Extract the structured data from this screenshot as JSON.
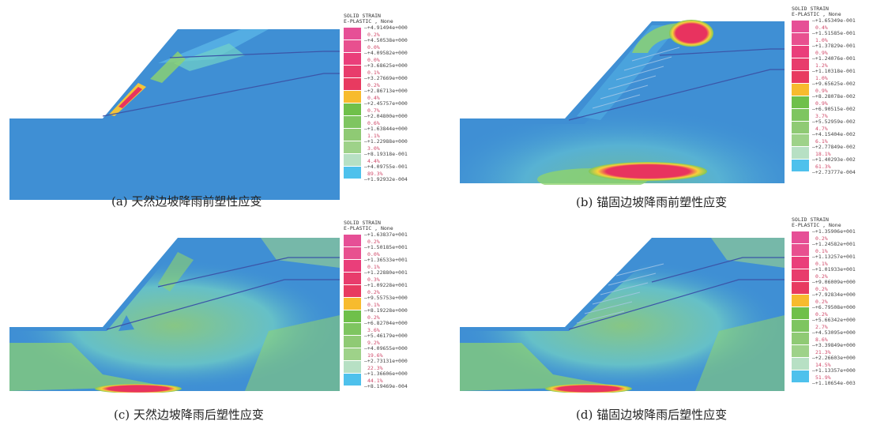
{
  "captions": {
    "a": "(a) 天然边坡降雨前塑性应变",
    "b": "(b) 锚固边坡降雨前塑性应变",
    "c": "(c) 天然边坡降雨后塑性应变",
    "d": "(d) 锚固边坡降雨后塑性应变"
  },
  "legend_title": {
    "line1": "SOLID STRAIN",
    "line2": "E-PLASTIC , None"
  },
  "colors": [
    "#e64f96",
    "#e8508f",
    "#ea3e7a",
    "#e83c6c",
    "#e83a60",
    "#f7bb2e",
    "#6fc04a",
    "#7ec560",
    "#8fca74",
    "#9ed289",
    "#a9d8a4",
    "#b7e0c4",
    "#4ec1ec",
    "#3b82c9"
  ],
  "legends": {
    "a": {
      "values": [
        "+4.91494e+000",
        "+4.50538e+000",
        "+4.09582e+000",
        "+3.68625e+000",
        "+3.27669e+000",
        "+2.86713e+000",
        "+2.45757e+000",
        "+2.04800e+000",
        "+1.63844e+000",
        "+1.22988e+000",
        "+8.19318e-001",
        "+4.09755e-001",
        "+1.92932e-004"
      ],
      "percents": [
        "0.2%",
        "0.0%",
        "0.0%",
        "0.1%",
        "0.2%",
        "0.4%",
        "0.7%",
        "0.6%",
        "1.1%",
        "3.0%",
        "4.4%",
        "89.3%"
      ]
    },
    "b": {
      "values": [
        "+1.65349e-001",
        "+1.51585e-001",
        "+1.37829e-001",
        "+1.24076e-001",
        "+1.10318e-001",
        "+9.65625e-002",
        "+8.28078e-002",
        "+6.90515e-002",
        "+5.52959e-002",
        "+4.15404e-002",
        "+2.77849e-002",
        "+1.40293e-002",
        "+2.73777e-004"
      ],
      "percents": [
        "0.4%",
        "1.0%",
        "0.9%",
        "1.2%",
        "1.0%",
        "0.9%",
        "0.9%",
        "3.7%",
        "4.7%",
        "6.1%",
        "18.1%",
        "61.3%"
      ]
    },
    "c": {
      "values": [
        "+1.63837e+001",
        "+1.50185e+001",
        "+1.36533e+001",
        "+1.22880e+001",
        "+1.09228e+001",
        "+9.55753e+000",
        "+8.19228e+000",
        "+6.82704e+000",
        "+5.46179e+000",
        "+4.09655e+000",
        "+2.73131e+000",
        "+1.36606e+000",
        "+8.19469e-004"
      ],
      "percents": [
        "0.2%",
        "0.0%",
        "0.1%",
        "0.3%",
        "0.2%",
        "0.1%",
        "0.2%",
        "3.6%",
        "9.2%",
        "19.6%",
        "22.3%",
        "44.1%"
      ]
    },
    "d": {
      "values": [
        "+1.35906e+001",
        "+1.24582e+001",
        "+1.13257e+001",
        "+1.01933e+001",
        "+9.06009e+000",
        "+7.92834e+000",
        "+6.79508e+000",
        "+5.66342e+000",
        "+4.53095e+000",
        "+3.39849e+000",
        "+2.26603e+000",
        "+1.13357e+000",
        "+1.10654e-003"
      ],
      "percents": [
        "0.2%",
        "0.1%",
        "0.1%",
        "0.2%",
        "0.2%",
        "0.2%",
        "0.2%",
        "2.7%",
        "8.6%",
        "21.3%",
        "14.5%",
        "51.9%"
      ]
    }
  }
}
